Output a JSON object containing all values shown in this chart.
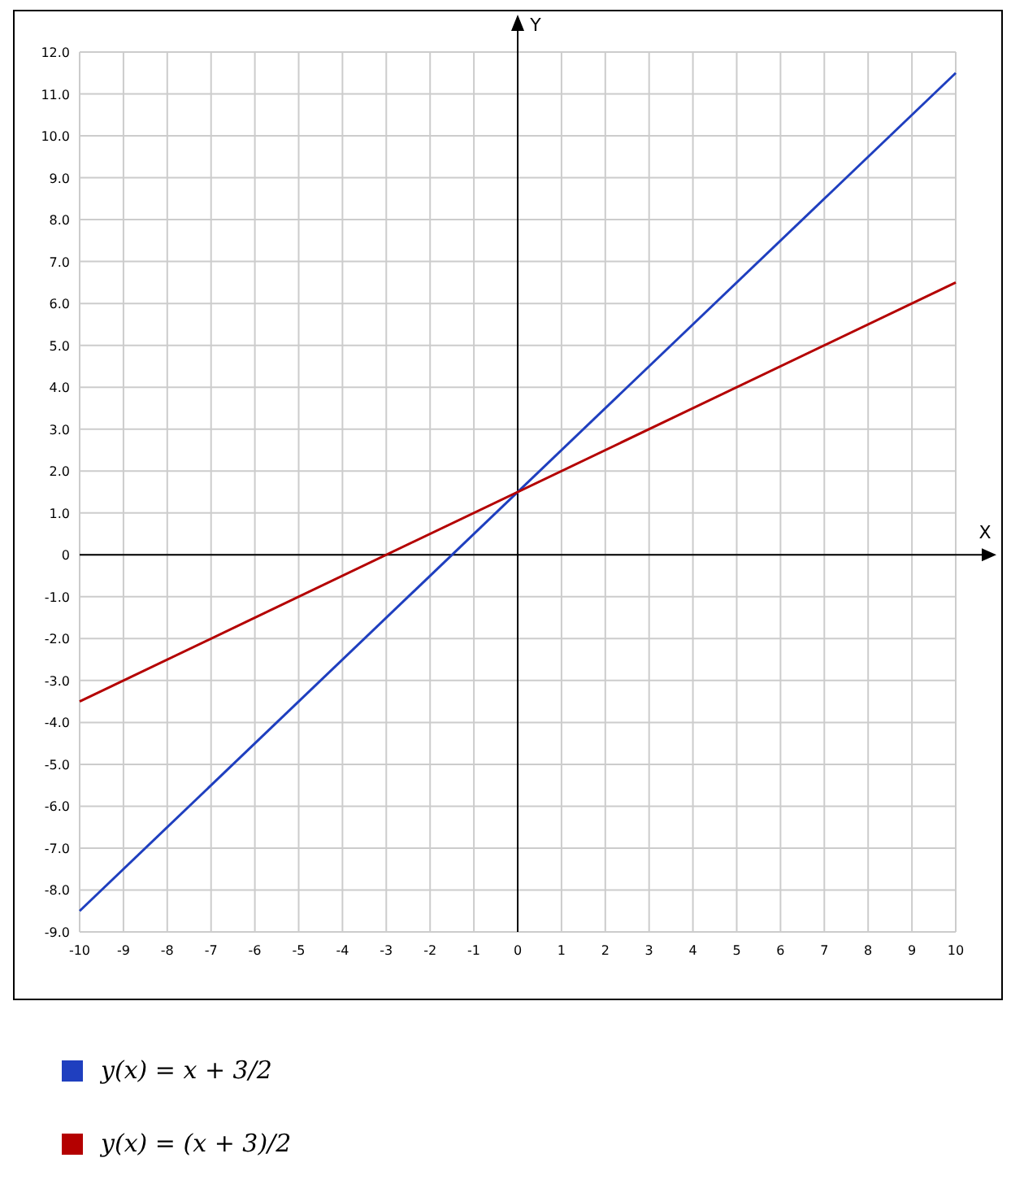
{
  "chart_data": {
    "type": "line",
    "xlabel": "X",
    "ylabel": "Y",
    "x": [
      -10,
      10
    ],
    "series": [
      {
        "name": "y(x) = x + 3/2",
        "color": "#1f3fbf",
        "values": [
          -8.5,
          11.5
        ]
      },
      {
        "name": "y(x) = (x + 3)/2",
        "color": "#b40000",
        "values": [
          -3.5,
          6.5
        ]
      }
    ],
    "xlim": [
      -10,
      10
    ],
    "ylim": [
      -9,
      12
    ],
    "xticks": [
      -10,
      -9,
      -8,
      -7,
      -6,
      -5,
      -4,
      -3,
      -2,
      -1,
      0,
      1,
      2,
      3,
      4,
      5,
      6,
      7,
      8,
      9,
      10
    ],
    "yticks": [
      {
        "value": -9,
        "label": "-9.0"
      },
      {
        "value": -8,
        "label": "-8.0"
      },
      {
        "value": -7,
        "label": "-7.0"
      },
      {
        "value": -6,
        "label": "-6.0"
      },
      {
        "value": -5,
        "label": "-5.0"
      },
      {
        "value": -4,
        "label": "-4.0"
      },
      {
        "value": -3,
        "label": "-3.0"
      },
      {
        "value": -2,
        "label": "-2.0"
      },
      {
        "value": -1,
        "label": "-1.0"
      },
      0,
      {
        "value": 1,
        "label": "1.0"
      },
      {
        "value": 2,
        "label": "2.0"
      },
      {
        "value": 3,
        "label": "3.0"
      },
      {
        "value": 4,
        "label": "4.0"
      },
      {
        "value": 5,
        "label": "5.0"
      },
      {
        "value": 6,
        "label": "6.0"
      },
      {
        "value": 7,
        "label": "7.0"
      },
      {
        "value": 8,
        "label": "8.0"
      },
      {
        "value": 9,
        "label": "9.0"
      },
      {
        "value": 10,
        "label": "10.0"
      },
      {
        "value": 11,
        "label": "11.0"
      },
      {
        "value": 12,
        "label": "12.0"
      }
    ],
    "grid": true,
    "legend": "bottom",
    "marker": "none",
    "line_style": "solid"
  }
}
